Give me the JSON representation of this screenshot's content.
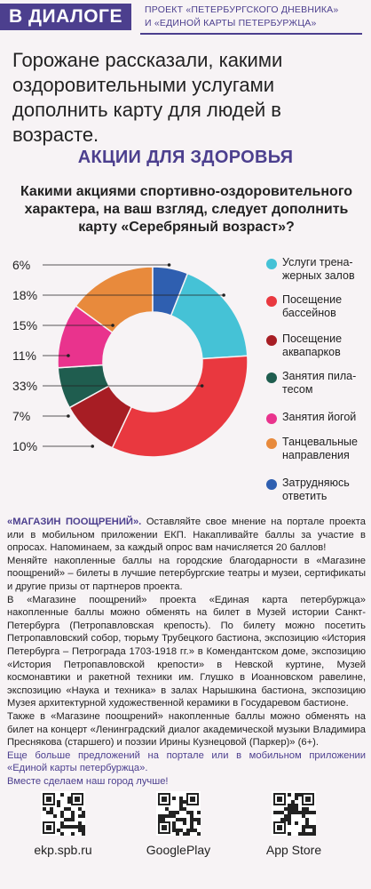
{
  "header": {
    "badge": "В ДИАЛОГЕ",
    "project_line1": "ПРОЕКТ «ПЕТЕРБУРГСКОГО ДНЕВНИКА»",
    "project_line2": "И «ЕДИНОЙ КАРТЫ ПЕТЕРБУРЖЦА»"
  },
  "lead": "Горожане рассказали, какими оздоровительными услугами дополнить карту для людей в возрасте.",
  "section_title": "АКЦИИ ДЛЯ ЗДОРОВЬЯ",
  "question": "Какими акциями спортивно-оздоровительного характера, на ваш взгляд, следует дополнить карту «Серебряный возраст»?",
  "colors": {
    "accent": "#4c3f8e",
    "background": "#f7f3f5"
  },
  "chart_data": {
    "type": "pie",
    "donut": true,
    "categories": [
      "Услуги тренажерных залов",
      "Посещение бассейнов",
      "Посещение аквапарков",
      "Занятия пилатесом",
      "Занятия йогой",
      "Танцевальные направления",
      "Затрудняюсь ответить"
    ],
    "values": [
      18,
      33,
      10,
      7,
      11,
      15,
      6
    ],
    "value_labels": [
      "18%",
      "33%",
      "10%",
      "7%",
      "11%",
      "15%",
      "6%"
    ],
    "colors": [
      "#45c2d6",
      "#e9383f",
      "#a71d24",
      "#1f5d4f",
      "#e9338d",
      "#e88a3c",
      "#2f5fb0"
    ],
    "legend": [
      {
        "label_line1": "Услуги трена-",
        "label_line2": "жерных залов",
        "color": "#45c2d6"
      },
      {
        "label_line1": "Посещение",
        "label_line2": "бассейнов",
        "color": "#e9383f"
      },
      {
        "label_line1": "Посещение",
        "label_line2": "аквапарков",
        "color": "#a71d24"
      },
      {
        "label_line1": "Занятия пила-",
        "label_line2": "тесом",
        "color": "#1f5d4f"
      },
      {
        "label_line1": "Занятия йогой",
        "label_line2": "",
        "color": "#e9338d"
      },
      {
        "label_line1": "Танцевальные",
        "label_line2": "направления",
        "color": "#e88a3c"
      },
      {
        "label_line1": "Затрудняюсь",
        "label_line2": "ответить",
        "color": "#2f5fb0"
      }
    ],
    "left_labels": [
      "6%",
      "18%",
      "15%",
      "11%",
      "33%",
      "7%",
      "10%"
    ],
    "legend_placement": "right"
  },
  "body": {
    "heading": "«МАГАЗИН ПООЩРЕНИЙ».",
    "p1": " Оставляйте свое мнение на портале проекта или в мобильном приложении ЕКП. Накапливайте баллы за участие в опросах. Напоминаем, за каждый опрос вам начисляется 20 баллов!",
    "p2": "Меняйте накопленные баллы на городские благодарности в «Магазине поощрений» – билеты в лучшие петербургские театры и музеи, сертификаты и другие призы от партнеров проекта.",
    "p3": "В «Магазине поощрений» проекта «Единая карта петербуржца» накопленные баллы можно обменять на билет в Музей истории Санкт-Петербурга (Петропавловская крепость). По билету можно посетить Петропавловский собор, тюрьму Трубецкого бастиона, экспозицию «История Петербурга – Петрограда 1703-1918 гг.» в Комендантском доме, экспозицию «История Петропавловской крепости» в Невской куртине, Музей космонавтики и ракетной техники им. Глушко в Иоанновском равелине, экспозицию «Наука и техника» в залах Нарышкина бастиона, экспозицию Музея архитектурной художественной керамики в Государевом бастионе.",
    "p4": "Также в «Магазине поощрений» накопленные баллы можно обменять на билет на концерт «Ленинградский диалог академической музыки Владимира Преснякова (старшего) и поэзии Ирины Кузнецовой (Паркер)» (6+).",
    "p5": "Еще больше предложений на портале или в мобильном приложении «Единой карты петербуржца».",
    "p6": "Вместе сделаем наш город лучше!"
  },
  "footer": {
    "links": [
      "ekp.spb.ru",
      "GooglePlay",
      "App Store"
    ],
    "qr_icon": "qr-code-icon"
  }
}
